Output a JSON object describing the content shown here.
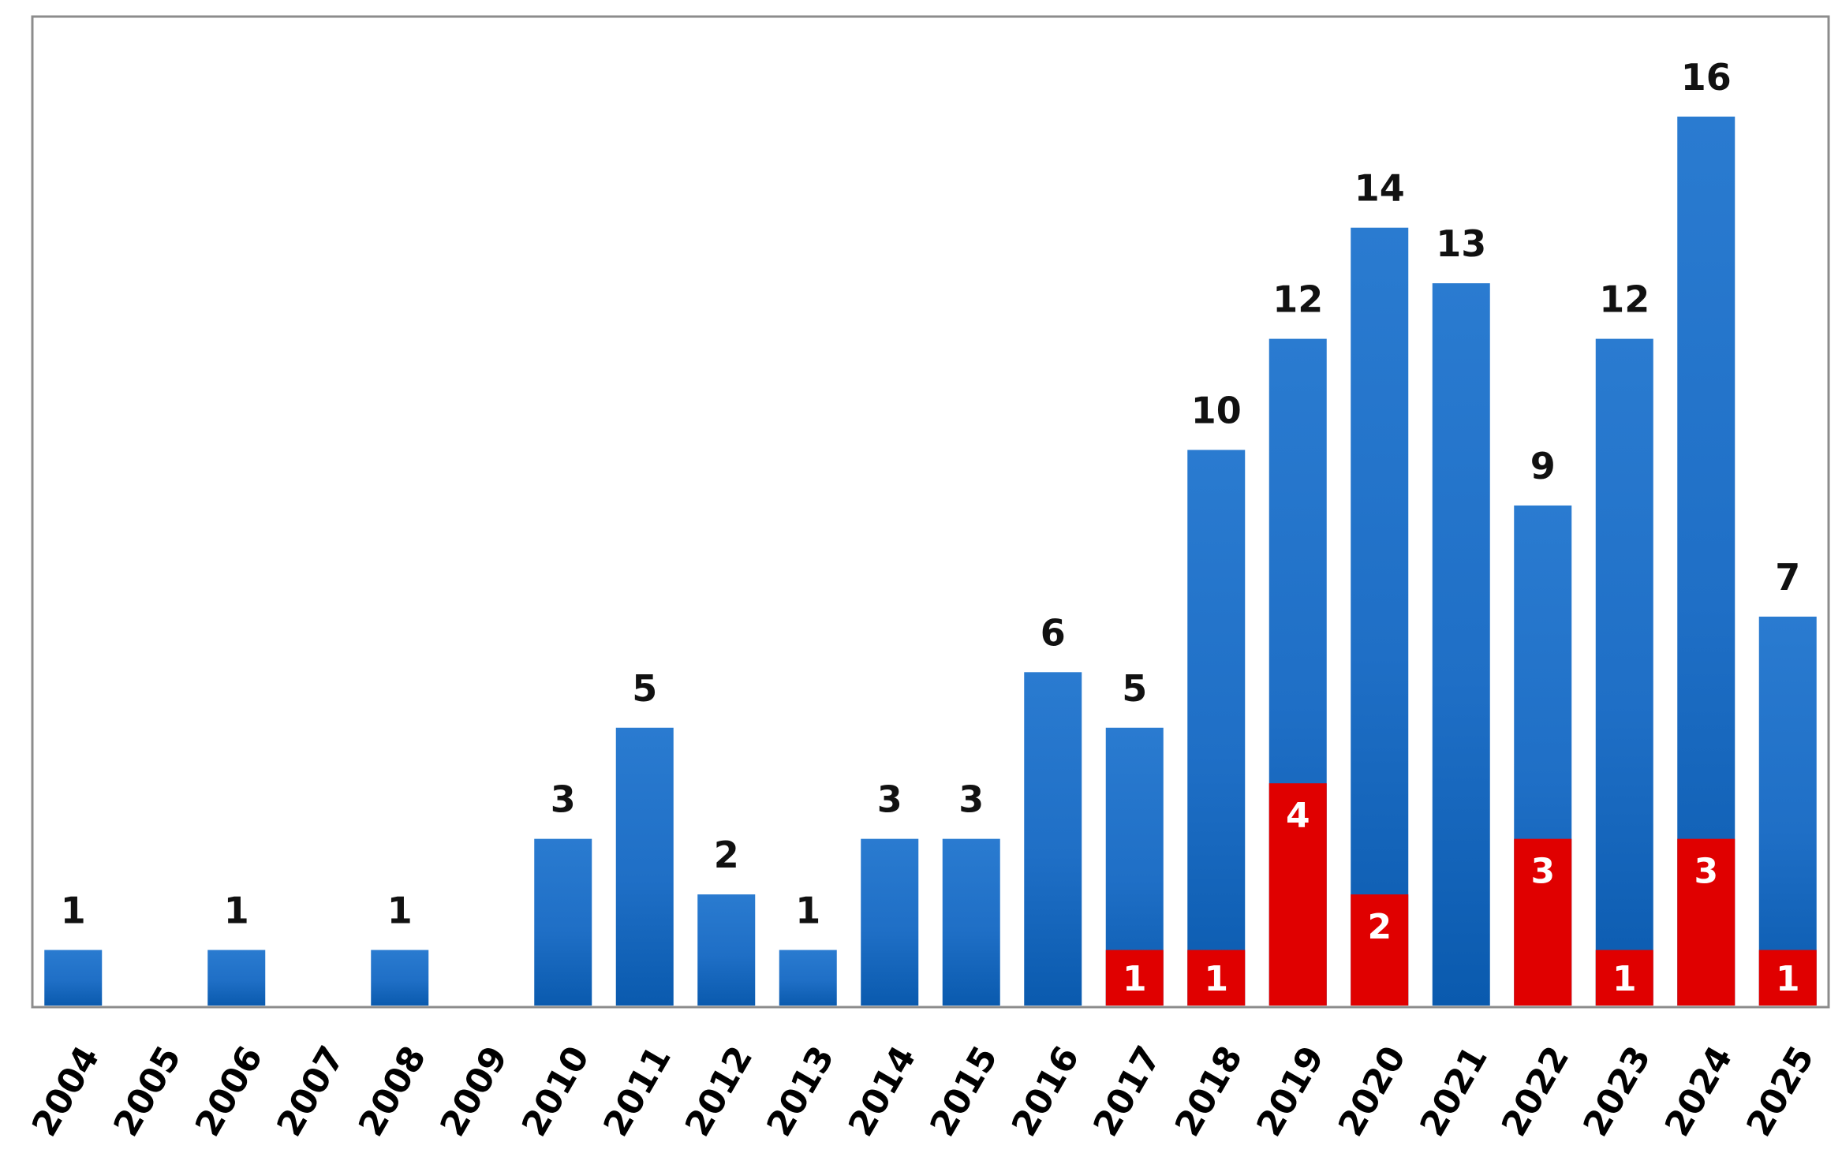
{
  "chart_data": {
    "type": "bar",
    "stacked": false,
    "categories": [
      "2004",
      "2005",
      "2006",
      "2007",
      "2008",
      "2009",
      "2010",
      "2011",
      "2012",
      "2013",
      "2014",
      "2015",
      "2016",
      "2017",
      "2018",
      "2019",
      "2020",
      "2021",
      "2022",
      "2023",
      "2024",
      "2025"
    ],
    "series": [
      {
        "values": [
          1,
          0,
          1,
          0,
          1,
          0,
          3,
          5,
          2,
          1,
          3,
          3,
          6,
          5,
          10,
          12,
          14,
          13,
          9,
          12,
          16,
          7
        ],
        "color": "#1F6FC6"
      },
      {
        "values": [
          0,
          0,
          0,
          0,
          0,
          0,
          0,
          0,
          0,
          0,
          0,
          0,
          0,
          1,
          1,
          4,
          2,
          0,
          3,
          1,
          3,
          1
        ],
        "color": "#E00000"
      }
    ],
    "total_labels": [
      "1",
      "",
      "1",
      "",
      "1",
      "",
      "3",
      "5",
      "2",
      "1",
      "3",
      "3",
      "6",
      "5",
      "10",
      "12",
      "14",
      "13",
      "9",
      "12",
      "16",
      "7"
    ],
    "sub_labels": [
      "",
      "",
      "",
      "",
      "",
      "",
      "",
      "",
      "",
      "",
      "",
      "",
      "",
      "1",
      "1",
      "4",
      "2",
      "",
      "3",
      "1",
      "3",
      "1"
    ],
    "ylim": [
      0,
      17.8
    ],
    "grid": false,
    "legend": "none",
    "xtick_rotation": -60
  }
}
